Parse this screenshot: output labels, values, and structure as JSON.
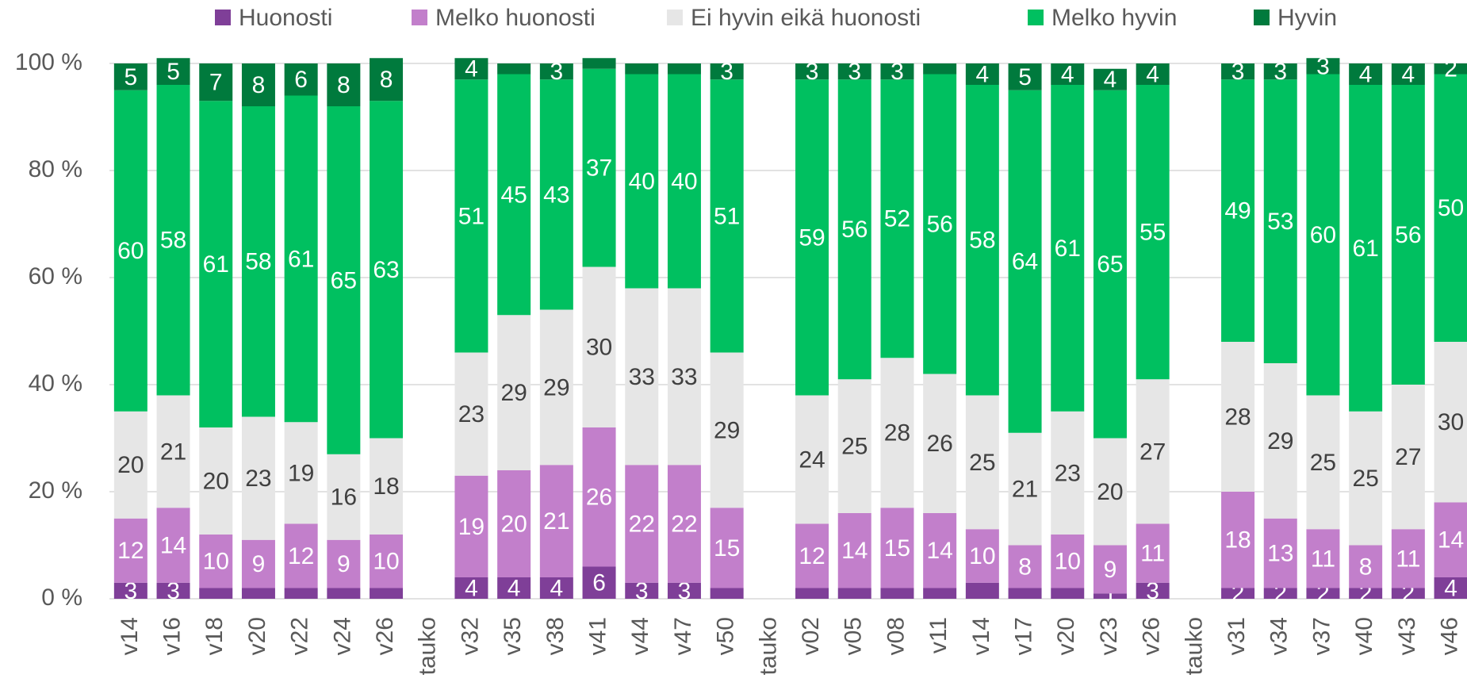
{
  "chart_data": {
    "type": "stacked_bar",
    "categories": [
      "v14",
      "v16",
      "v18",
      "v20",
      "v22",
      "v24",
      "v26",
      "tauko",
      "v32",
      "v35",
      "v38",
      "v41",
      "v44",
      "v47",
      "v50",
      "tauko",
      "v02",
      "v05",
      "v08",
      "v11",
      "v14",
      "v17",
      "v20",
      "v23",
      "v26",
      "tauko",
      "v31",
      "v34",
      "v37",
      "v40",
      "v43",
      "v46"
    ],
    "series": [
      {
        "name": "Huonosti",
        "color": "#7f3f98",
        "values": [
          3,
          3,
          2,
          2,
          2,
          2,
          2,
          null,
          4,
          4,
          4,
          6,
          3,
          3,
          2,
          null,
          2,
          2,
          2,
          2,
          3,
          2,
          2,
          1,
          3,
          null,
          2,
          2,
          2,
          2,
          2,
          4
        ],
        "value_labels": [
          "3",
          "3",
          null,
          null,
          null,
          null,
          null,
          null,
          "4",
          "4",
          "4",
          "6",
          "3",
          "3",
          null,
          null,
          null,
          null,
          null,
          null,
          null,
          null,
          null,
          "1",
          "3",
          null,
          "2",
          "2",
          "2",
          "2",
          "2",
          "4"
        ]
      },
      {
        "name": "Melko huonosti",
        "color": "#c27fcb",
        "values": [
          12,
          14,
          10,
          9,
          12,
          9,
          10,
          null,
          19,
          20,
          21,
          26,
          22,
          22,
          15,
          null,
          12,
          14,
          15,
          14,
          10,
          8,
          10,
          9,
          11,
          null,
          18,
          13,
          11,
          8,
          11,
          14
        ]
      },
      {
        "name": "Ei hyvin eikä huonosti",
        "color": "#e6e6e6",
        "values": [
          20,
          21,
          20,
          23,
          19,
          16,
          18,
          null,
          23,
          29,
          29,
          30,
          33,
          33,
          29,
          null,
          24,
          25,
          28,
          26,
          25,
          21,
          23,
          20,
          27,
          null,
          28,
          29,
          25,
          25,
          27,
          30
        ]
      },
      {
        "name": "Melko hyvin",
        "color": "#00c060",
        "values": [
          60,
          58,
          61,
          58,
          61,
          65,
          63,
          null,
          51,
          45,
          43,
          37,
          40,
          40,
          51,
          null,
          59,
          56,
          52,
          56,
          58,
          64,
          61,
          65,
          55,
          null,
          49,
          53,
          60,
          61,
          56,
          50
        ]
      },
      {
        "name": "Hyvin",
        "color": "#007a3d",
        "values": [
          5,
          5,
          7,
          8,
          6,
          8,
          8,
          null,
          4,
          2,
          3,
          2,
          2,
          2,
          3,
          null,
          3,
          3,
          3,
          2,
          4,
          5,
          4,
          4,
          4,
          null,
          3,
          3,
          3,
          4,
          4,
          2
        ],
        "value_labels": [
          "5",
          "5",
          "7",
          "8",
          "6",
          "8",
          "8",
          null,
          "4",
          null,
          "3",
          null,
          null,
          null,
          "3",
          null,
          "3",
          "3",
          "3",
          null,
          "4",
          "5",
          "4",
          "4",
          "4",
          null,
          "3",
          "3",
          "3",
          "4",
          "4",
          "2"
        ]
      }
    ],
    "ylim": [
      0,
      100
    ],
    "yticks": [
      {
        "value": 0,
        "label": "0 %"
      },
      {
        "value": 20,
        "label": "20 %"
      },
      {
        "value": 40,
        "label": "40 %"
      },
      {
        "value": 60,
        "label": "60 %"
      },
      {
        "value": 80,
        "label": "80 %"
      },
      {
        "value": 100,
        "label": "100 %"
      }
    ],
    "grid": true,
    "legend": "top"
  }
}
